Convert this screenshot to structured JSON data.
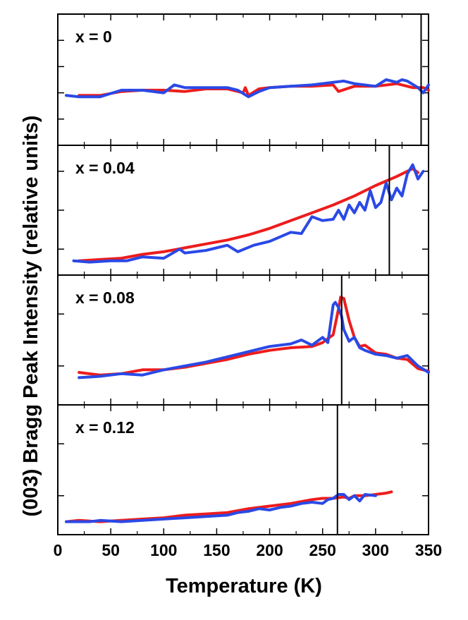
{
  "chart_data": {
    "type": "line",
    "xlabel": "Temperature (K)",
    "ylabel": "(003) Bragg Peak Intensity (relative units)",
    "xlim": [
      0,
      350
    ],
    "x_ticks": [
      0,
      50,
      100,
      150,
      200,
      250,
      300,
      350
    ],
    "colors": {
      "series_a": "#ee1c1c",
      "series_b": "#2a49e6",
      "marker": "#000000",
      "axes": "#000000"
    },
    "panels": [
      {
        "label": "x = 0",
        "ylim": [
          0,
          10
        ],
        "y_ticks": [
          2,
          4,
          6,
          8
        ],
        "vline_x": 343,
        "series": [
          {
            "name": "red",
            "x": [
              20,
              40,
              60,
              80,
              100,
              120,
              140,
              160,
              170,
              175,
              177,
              180,
              190,
              200,
              220,
              240,
              260,
              265,
              280,
              300,
              320,
              335,
              345,
              350
            ],
            "values": [
              3.8,
              3.8,
              4.1,
              4.2,
              4.2,
              4.1,
              4.3,
              4.3,
              4.1,
              4.0,
              4.4,
              3.8,
              4.3,
              4.4,
              4.5,
              4.5,
              4.6,
              4.1,
              4.5,
              4.5,
              4.7,
              4.4,
              4.4,
              4.2
            ]
          },
          {
            "name": "blue",
            "x": [
              8,
              20,
              40,
              60,
              80,
              100,
              110,
              120,
              140,
              160,
              170,
              180,
              190,
              200,
              220,
              240,
              260,
              270,
              280,
              300,
              310,
              320,
              325,
              330,
              340,
              345,
              350
            ],
            "values": [
              3.8,
              3.7,
              3.7,
              4.2,
              4.2,
              4.0,
              4.6,
              4.4,
              4.4,
              4.4,
              4.2,
              3.7,
              4.1,
              4.4,
              4.5,
              4.6,
              4.8,
              4.9,
              4.7,
              4.5,
              5.0,
              4.8,
              5.0,
              4.9,
              4.4,
              4.0,
              4.6
            ]
          }
        ]
      },
      {
        "label": "x = 0.04",
        "ylim": [
          0,
          10
        ],
        "y_ticks": [
          2,
          5,
          8
        ],
        "vline_x": 313,
        "series": [
          {
            "name": "red",
            "x": [
              20,
              40,
              60,
              80,
              100,
              120,
              140,
              160,
              180,
              200,
              220,
              240,
              260,
              280,
              300,
              320,
              335,
              340
            ],
            "values": [
              1.1,
              1.2,
              1.3,
              1.6,
              1.8,
              2.1,
              2.4,
              2.7,
              3.1,
              3.6,
              4.2,
              4.8,
              5.4,
              6.1,
              6.9,
              7.6,
              8.2,
              7.9
            ]
          },
          {
            "name": "blue",
            "x": [
              15,
              30,
              50,
              65,
              80,
              100,
              115,
              120,
              140,
              160,
              170,
              185,
              200,
              220,
              230,
              240,
              250,
              260,
              265,
              270,
              275,
              280,
              285,
              290,
              295,
              300,
              305,
              310,
              315,
              320,
              325,
              330,
              335,
              340,
              345
            ],
            "values": [
              1.1,
              1.0,
              1.1,
              1.1,
              1.4,
              1.3,
              2.0,
              1.7,
              1.9,
              2.3,
              1.8,
              2.3,
              2.6,
              3.3,
              3.2,
              4.5,
              4.2,
              4.3,
              5.0,
              4.3,
              5.4,
              4.8,
              5.6,
              5.0,
              6.5,
              5.2,
              5.6,
              7.1,
              5.8,
              6.7,
              6.1,
              7.8,
              8.5,
              7.4,
              8.0
            ]
          }
        ]
      },
      {
        "label": "x = 0.08",
        "ylim": [
          0,
          10
        ],
        "y_ticks": [
          3,
          7
        ],
        "vline_x": 268,
        "series": [
          {
            "name": "red",
            "x": [
              20,
              40,
              60,
              80,
              100,
              120,
              140,
              160,
              180,
              200,
              220,
              240,
              250,
              260,
              265,
              267,
              270,
              275,
              280,
              285,
              290,
              300,
              310,
              320,
              330,
              340,
              350
            ],
            "values": [
              2.5,
              2.3,
              2.4,
              2.7,
              2.7,
              2.9,
              3.2,
              3.5,
              3.9,
              4.2,
              4.4,
              4.5,
              4.8,
              5.4,
              7.4,
              8.3,
              8.2,
              6.5,
              5.2,
              4.5,
              4.6,
              4.0,
              3.9,
              3.6,
              3.5,
              2.8,
              2.6
            ]
          },
          {
            "name": "blue",
            "x": [
              20,
              40,
              60,
              80,
              100,
              120,
              140,
              160,
              180,
              200,
              220,
              230,
              240,
              250,
              255,
              260,
              262,
              265,
              268,
              270,
              275,
              280,
              285,
              290,
              300,
              310,
              320,
              330,
              340,
              350
            ],
            "values": [
              2.1,
              2.2,
              2.4,
              2.3,
              2.7,
              3.0,
              3.3,
              3.7,
              4.1,
              4.5,
              4.7,
              5.0,
              4.6,
              5.2,
              4.8,
              7.7,
              7.9,
              7.5,
              6.8,
              5.8,
              4.9,
              5.2,
              4.4,
              4.2,
              3.9,
              3.8,
              3.6,
              3.8,
              3.0,
              2.5
            ]
          }
        ]
      },
      {
        "label": "x = 0.12",
        "ylim": [
          0,
          10
        ],
        "y_ticks": [
          3,
          7
        ],
        "vline_x": 264,
        "series": [
          {
            "name": "red",
            "x": [
              8,
              20,
              40,
              60,
              80,
              100,
              120,
              140,
              160,
              180,
              200,
              220,
              240,
              250,
              260,
              270,
              275,
              280,
              290,
              300,
              310,
              315
            ],
            "values": [
              1.0,
              1.1,
              1.0,
              1.1,
              1.2,
              1.3,
              1.5,
              1.6,
              1.7,
              2.0,
              2.2,
              2.4,
              2.7,
              2.8,
              2.8,
              2.9,
              2.8,
              3.0,
              3.0,
              3.1,
              3.2,
              3.3
            ]
          },
          {
            "name": "blue",
            "x": [
              8,
              20,
              30,
              40,
              60,
              80,
              100,
              120,
              140,
              160,
              170,
              180,
              190,
              200,
              210,
              220,
              230,
              240,
              250,
              255,
              260,
              265,
              270,
              275,
              280,
              285,
              290,
              300
            ],
            "values": [
              1.0,
              1.0,
              1.0,
              1.1,
              1.0,
              1.1,
              1.2,
              1.3,
              1.4,
              1.5,
              1.7,
              1.8,
              2.0,
              1.9,
              2.1,
              2.2,
              2.4,
              2.5,
              2.4,
              2.7,
              2.8,
              3.1,
              3.1,
              2.7,
              3.0,
              2.6,
              3.1,
              3.0
            ]
          }
        ]
      }
    ]
  }
}
